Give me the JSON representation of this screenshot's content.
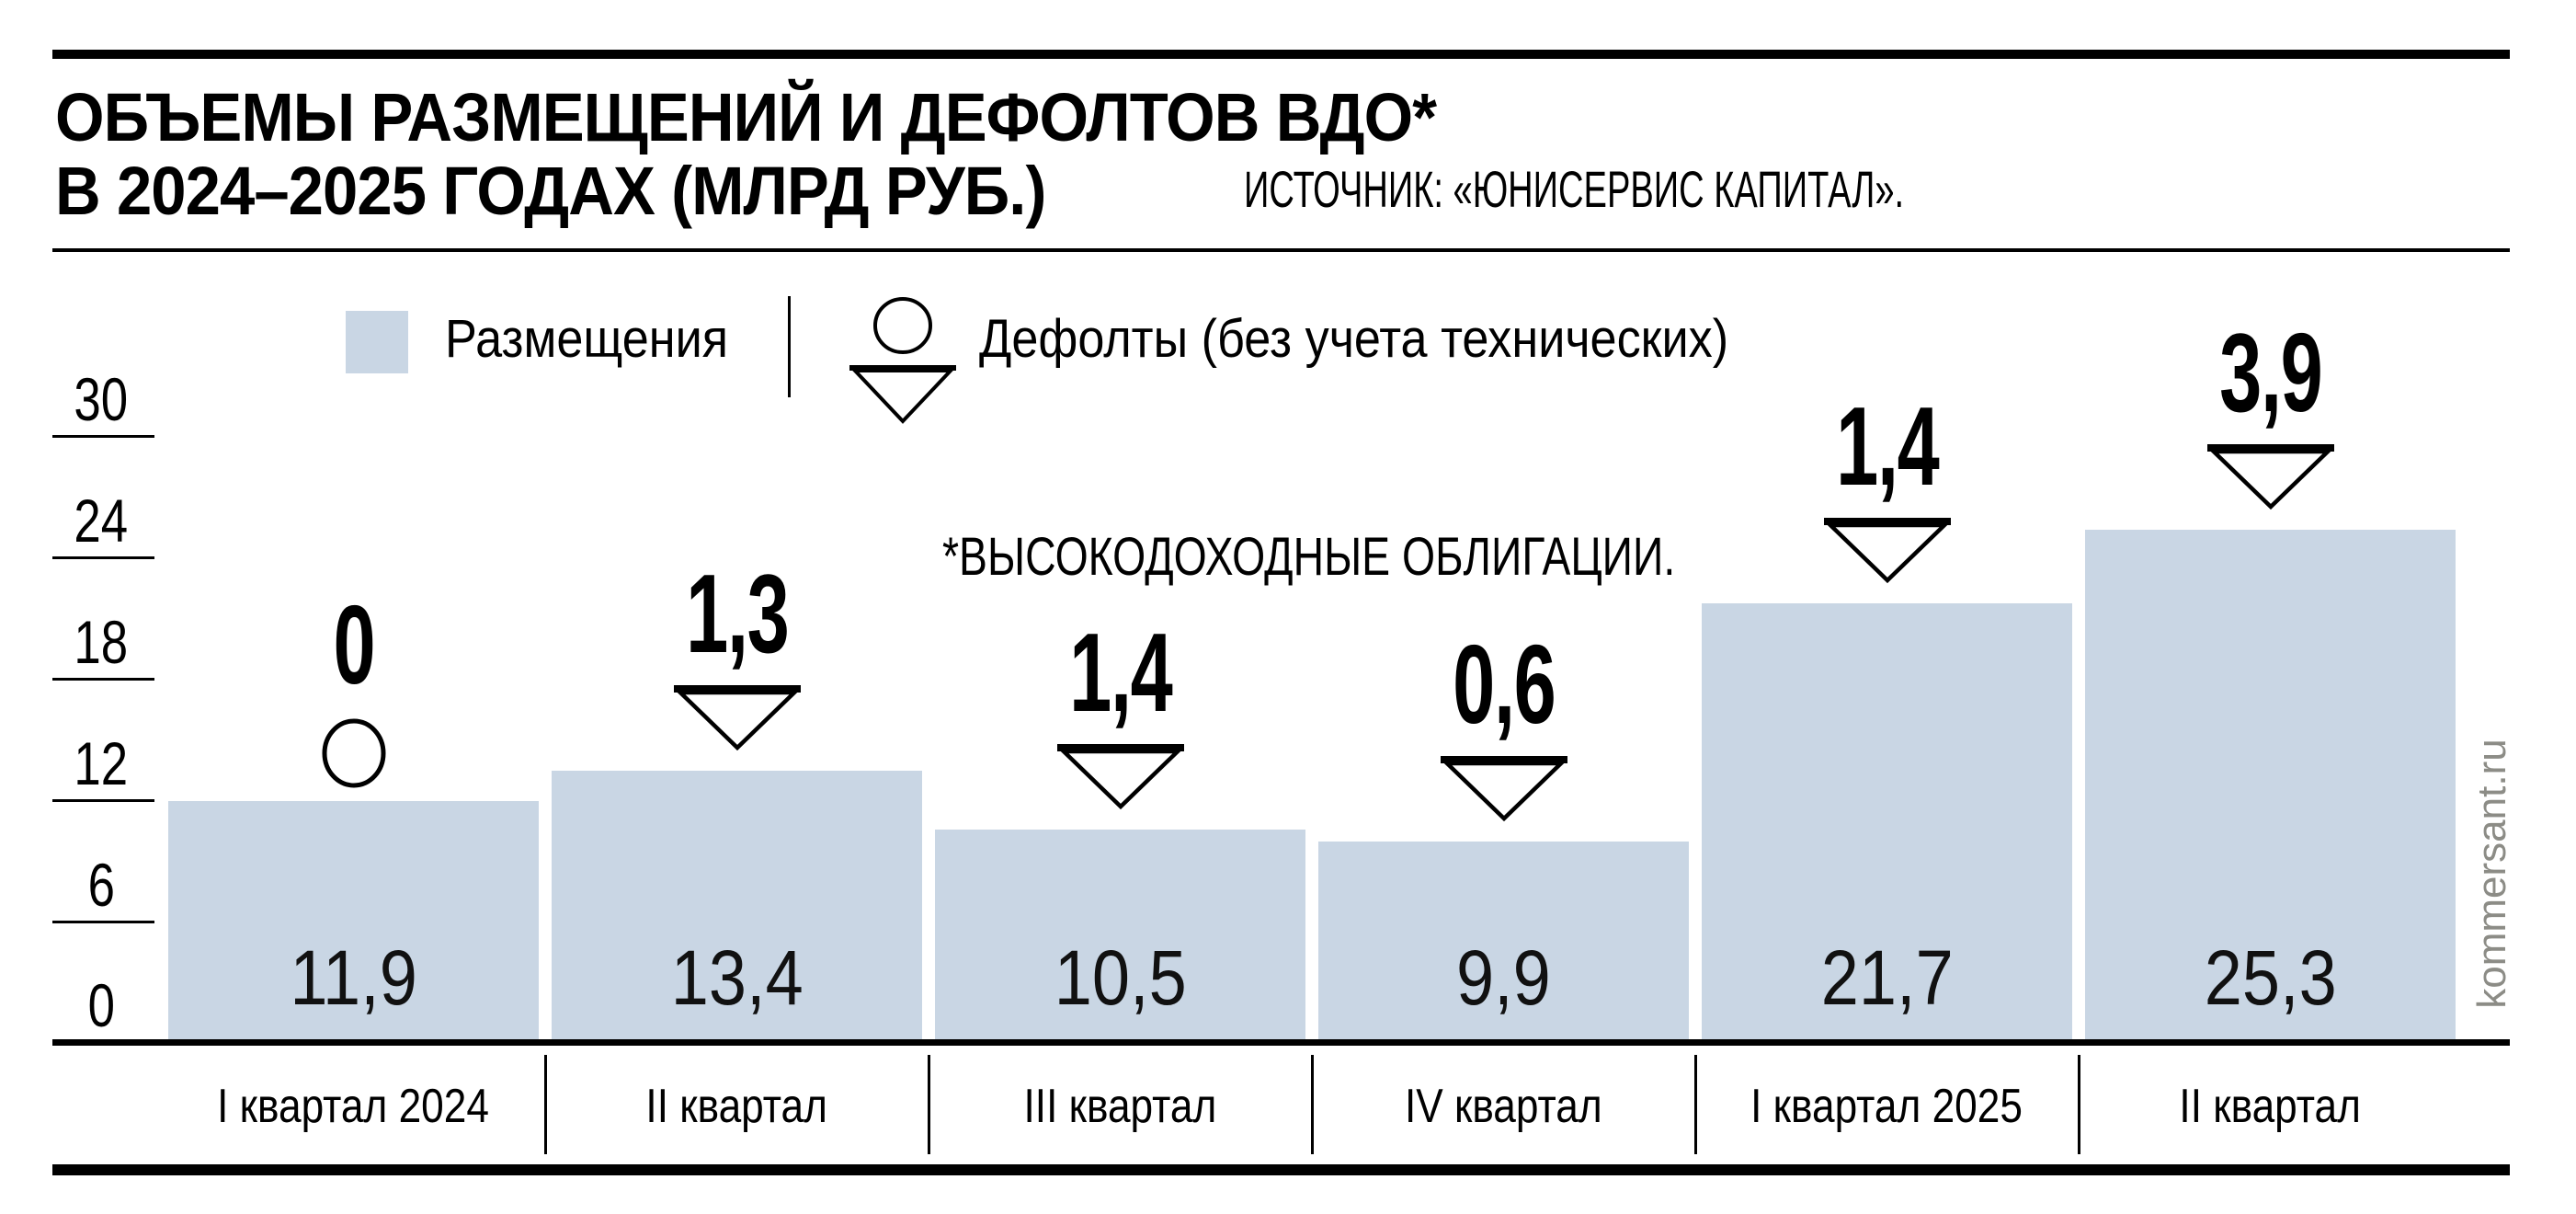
{
  "header": {
    "title_line1": "ОБЪЕМЫ РАЗМЕЩЕНИЙ И ДЕФОЛТОВ ВДО*",
    "title_line2": "В 2024–2025 ГОДАХ (МЛРД РУБ.)",
    "source": "ИСТОЧНИК: «ЮНИСЕРВИС КАПИТАЛ»."
  },
  "legend": {
    "placements_label": "Размещения",
    "defaults_label": "Дефолты (без учета технических)"
  },
  "footnote": "*ВЫСОКОДОХОДНЫЕ ОБЛИГАЦИИ.",
  "watermark": "kommersant.ru",
  "colors": {
    "bar_fill": "#c9d6e4",
    "text": "#000000",
    "value_text": "#111111",
    "watermark_text": "#8c8c86"
  },
  "chart_data": {
    "type": "bar",
    "title": "ОБЪЕМЫ РАЗМЕЩЕНИЙ И ДЕФОЛТОВ ВДО* В 2024–2025 ГОДАХ (МЛРД РУБ.)",
    "source": "ИСТОЧНИК: «ЮНИСЕРВИС КАПИТАЛ».",
    "footnote": "*ВЫСОКОДОХОДНЫЕ ОБЛИГАЦИИ.",
    "categories": [
      "I квартал 2024",
      "II квартал",
      "III квартал",
      "IV квартал",
      "I квартал 2025",
      "II квартал"
    ],
    "series": [
      {
        "name": "Размещения",
        "type": "bar",
        "color": "#c9d6e4",
        "values": [
          11.9,
          13.4,
          10.5,
          9.9,
          21.7,
          25.3
        ],
        "labels": [
          "11,9",
          "13,4",
          "10,5",
          "9,9",
          "21,7",
          "25,3"
        ]
      },
      {
        "name": "Дефолты (без учета технических)",
        "type": "marker",
        "marker": "triangle-down-outline",
        "marker_for_zero": "circle-outline",
        "values": [
          0,
          1.3,
          1.4,
          0.6,
          1.4,
          3.9
        ],
        "labels": [
          "0",
          "1,3",
          "1,4",
          "0,6",
          "1,4",
          "3,9"
        ]
      }
    ],
    "yticks": [
      0,
      6,
      12,
      18,
      24,
      30
    ],
    "ylim": [
      0,
      30
    ],
    "grid": false,
    "legend_position": "top"
  }
}
